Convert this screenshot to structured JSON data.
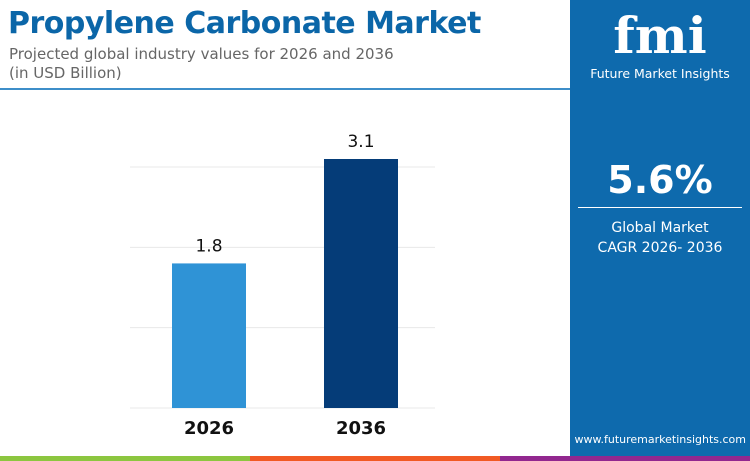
{
  "header": {
    "title": "Propylene Carbonate Market",
    "subtitle_line1": "Projected global industry values for 2026 and 2036",
    "subtitle_line2": "(in USD Billion)"
  },
  "sidebar": {
    "logo_text": "Future Market Insights",
    "logo_mark": "fmi",
    "cagr_value": "5.6%",
    "cagr_label_line1": "Global Market",
    "cagr_label_line2": "CAGR 2026- 2036",
    "website": "www.futuremarketinsights.com"
  },
  "colors": {
    "title": "#0b66a8",
    "panel": "#0e6aad",
    "bar_2026": "#2f93d6",
    "bar_2036": "#053c78",
    "strip": [
      "#8cc63f",
      "#f15a24",
      "#92278f"
    ]
  },
  "chart_data": {
    "type": "bar",
    "categories": [
      "2026",
      "2036"
    ],
    "values": [
      1.8,
      3.1
    ],
    "data_labels": [
      "1.8",
      "3.1"
    ],
    "ylim": [
      0,
      3.1
    ],
    "grid": true,
    "legend": "none",
    "title": "Propylene Carbonate Market",
    "subtitle": "Projected global industry values for 2026 and 2036 (in USD Billion)"
  }
}
